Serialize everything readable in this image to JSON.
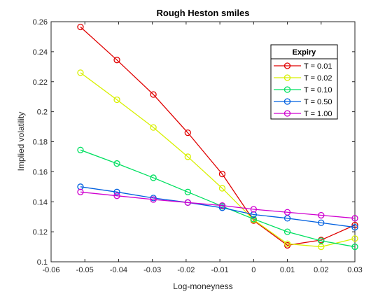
{
  "chart_data": {
    "type": "line",
    "title": "Rough Heston smiles",
    "xlabel": "Log-moneyness",
    "ylabel": "Implied volatility",
    "xlim": [
      -0.06,
      0.03
    ],
    "ylim": [
      0.1,
      0.26
    ],
    "xticks": [
      "-0.06",
      "-0.05",
      "-0.04",
      "-0.03",
      "-0.02",
      "-0.01",
      "0",
      "0.01",
      "0.02",
      "0.03"
    ],
    "yticks": [
      "0.1",
      "0.12",
      "0.14",
      "0.16",
      "0.18",
      "0.2",
      "0.22",
      "0.24",
      "0.26"
    ],
    "grid": false,
    "legend": {
      "title": "Expiry",
      "placement": "top-right"
    },
    "x": [
      -0.0513,
      -0.0405,
      -0.0297,
      -0.0195,
      -0.0093,
      0.0,
      0.01,
      0.02,
      0.03
    ],
    "series": [
      {
        "name": "T = 0.01",
        "color": "#e00000",
        "values": [
          0.2565,
          0.2345,
          0.2115,
          0.186,
          0.1585,
          0.1275,
          0.111,
          0.1145,
          0.1245
        ]
      },
      {
        "name": "T = 0.02",
        "color": "#d8f000",
        "values": [
          0.226,
          0.208,
          0.1895,
          0.17,
          0.149,
          0.128,
          0.112,
          0.11,
          0.1155
        ]
      },
      {
        "name": "T = 0.10",
        "color": "#00e060",
        "values": [
          0.1745,
          0.1655,
          0.156,
          0.1465,
          0.137,
          0.1285,
          0.12,
          0.114,
          0.11
        ]
      },
      {
        "name": "T = 0.50",
        "color": "#0060e0",
        "values": [
          0.15,
          0.1465,
          0.1425,
          0.1395,
          0.136,
          0.1315,
          0.129,
          0.126,
          0.123
        ]
      },
      {
        "name": "T = 1.00",
        "color": "#d000d0",
        "values": [
          0.1465,
          0.144,
          0.1415,
          0.1395,
          0.1375,
          0.135,
          0.133,
          0.131,
          0.129
        ]
      }
    ]
  }
}
